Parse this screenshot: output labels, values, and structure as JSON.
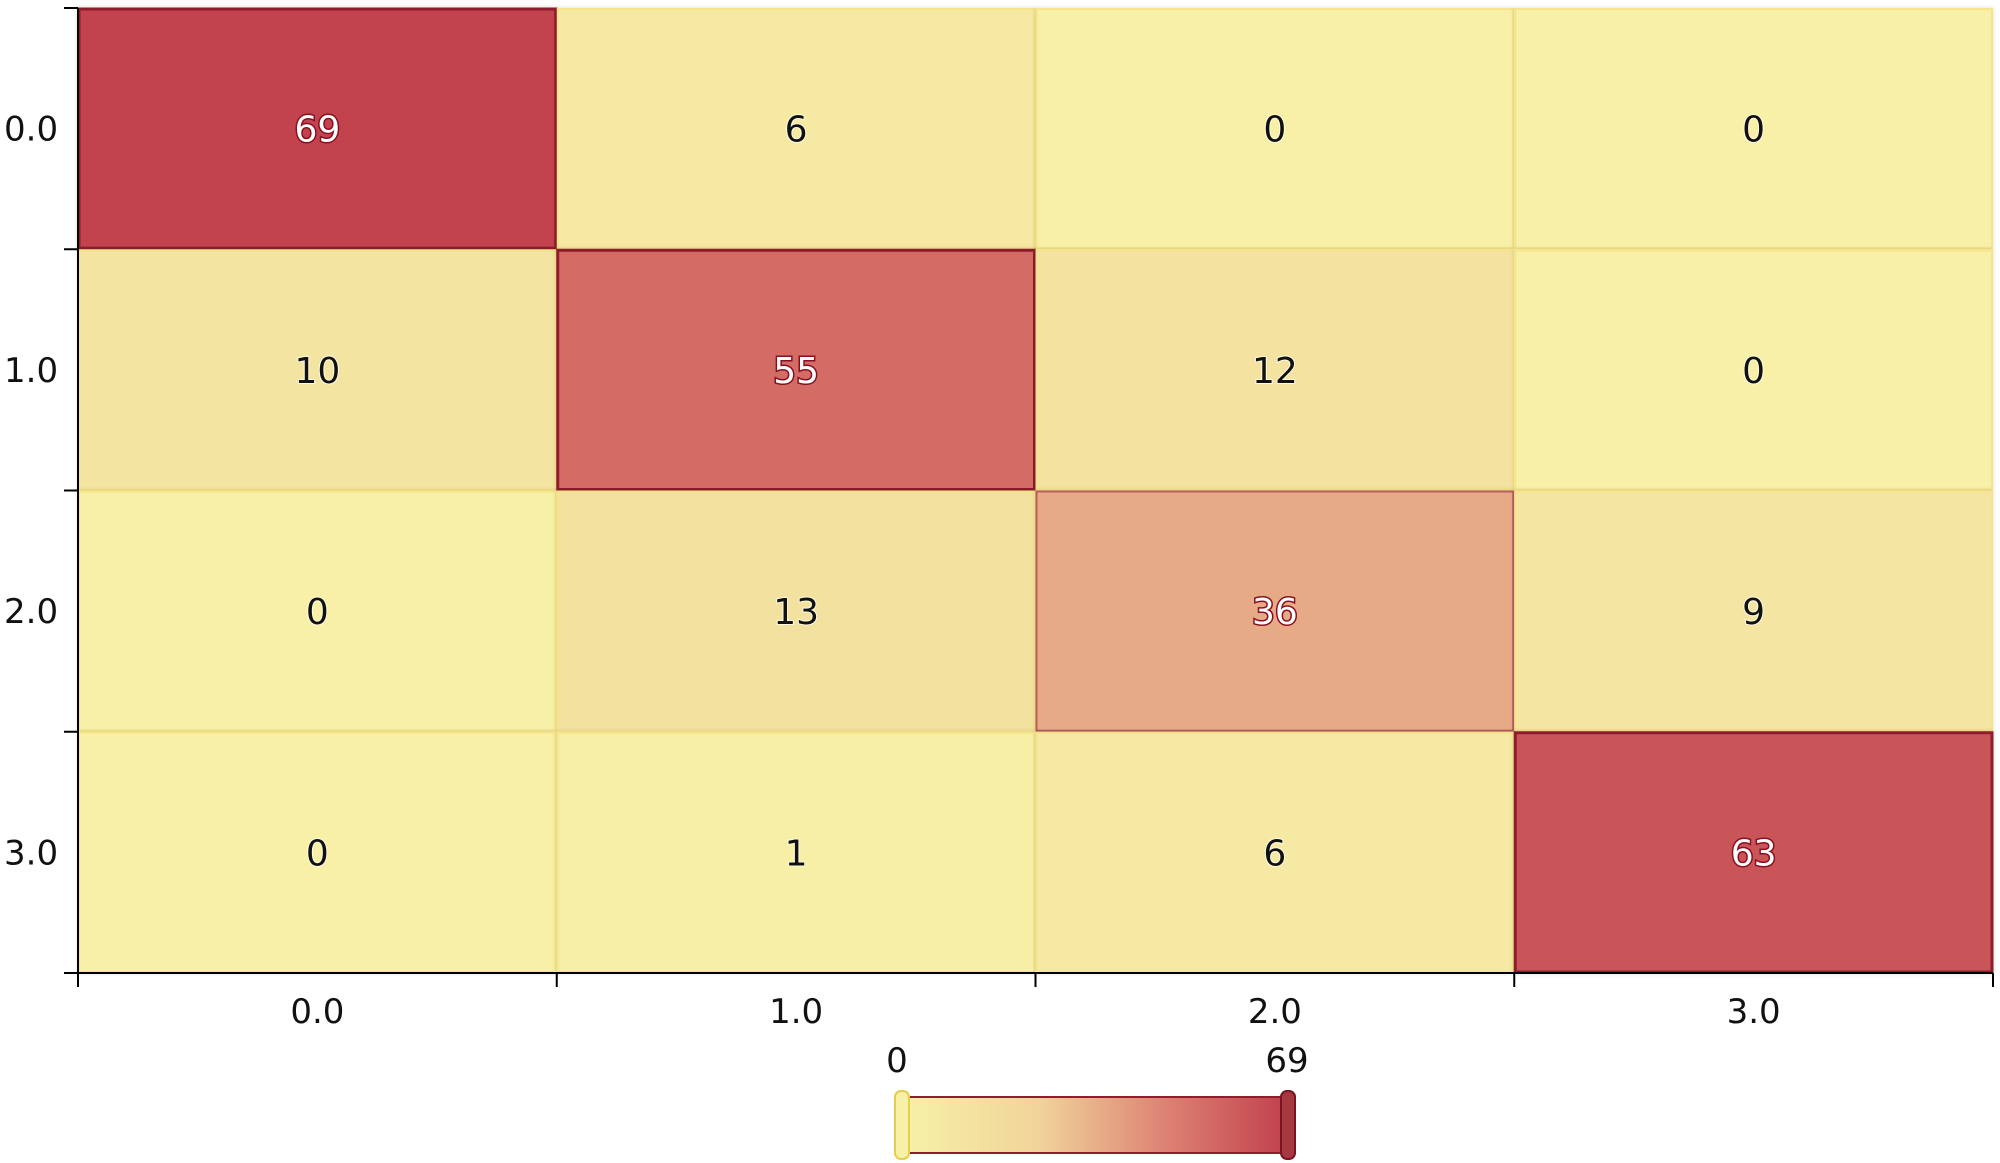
{
  "chart_data": {
    "type": "heatmap",
    "title": "",
    "xlabel": "",
    "ylabel": "",
    "x_categories": [
      "0.0",
      "1.0",
      "2.0",
      "3.0"
    ],
    "y_categories": [
      "0.0",
      "1.0",
      "2.0",
      "3.0"
    ],
    "values": [
      [
        69,
        6,
        0,
        0
      ],
      [
        10,
        55,
        12,
        0
      ],
      [
        0,
        13,
        36,
        9
      ],
      [
        0,
        1,
        6,
        63
      ]
    ],
    "colorbar": {
      "min": 0,
      "max": 69,
      "min_label": "0",
      "max_label": "69",
      "colors": [
        "#f7f0a6",
        "#f0d49a",
        "#dc7f72",
        "#c2434e"
      ]
    },
    "grid": false,
    "legend": "bottom-center"
  }
}
